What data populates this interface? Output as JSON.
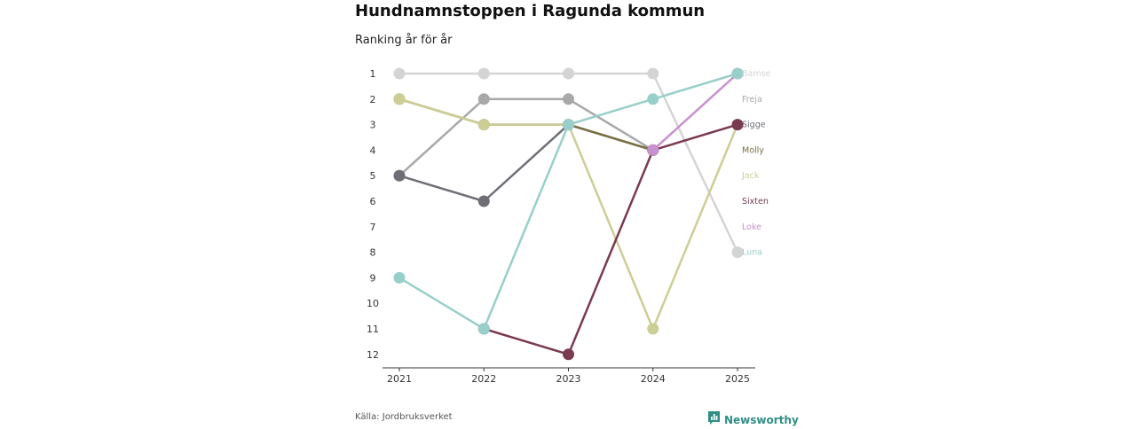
{
  "title": "Hundnamnstoppen i Ragunda kommun",
  "subtitle": "Ranking år för år",
  "source": "Källa: Jordbruksverket",
  "brand": {
    "name": "Newsworthy",
    "icon": "newsworthy-logo-icon",
    "color": "#2f8f84"
  },
  "chart_data": {
    "type": "line",
    "subtype": "bump",
    "x": [
      "2021",
      "2022",
      "2023",
      "2024",
      "2025"
    ],
    "y_ticks": [
      1,
      2,
      3,
      4,
      5,
      6,
      7,
      8,
      9,
      10,
      11,
      12
    ],
    "y_reversed": true,
    "ylim": [
      1,
      12
    ],
    "grid": false,
    "legend": "end-labels-right",
    "series": [
      {
        "name": "Bamse",
        "color": "#d4d4d4",
        "values": [
          1,
          1,
          1,
          1,
          8
        ]
      },
      {
        "name": "Freja",
        "color": "#a8a8a8",
        "values": [
          5,
          2,
          2,
          4,
          null
        ]
      },
      {
        "name": "Sigge",
        "color": "#6e6e76",
        "values": [
          5,
          6,
          3,
          4,
          null
        ]
      },
      {
        "name": "Molly",
        "color": "#7a7040",
        "values": [
          2,
          3,
          3,
          4,
          null
        ]
      },
      {
        "name": "Jack",
        "color": "#cdcd96",
        "values": [
          2,
          3,
          3,
          11,
          3
        ]
      },
      {
        "name": "Sixten",
        "color": "#7a3a50",
        "values": [
          null,
          11,
          12,
          4,
          3
        ]
      },
      {
        "name": "Loke",
        "color": "#c890d0",
        "values": [
          null,
          null,
          null,
          4,
          1
        ]
      },
      {
        "name": "Luna",
        "color": "#98cfca",
        "values": [
          9,
          11,
          3,
          2,
          1
        ]
      }
    ]
  }
}
